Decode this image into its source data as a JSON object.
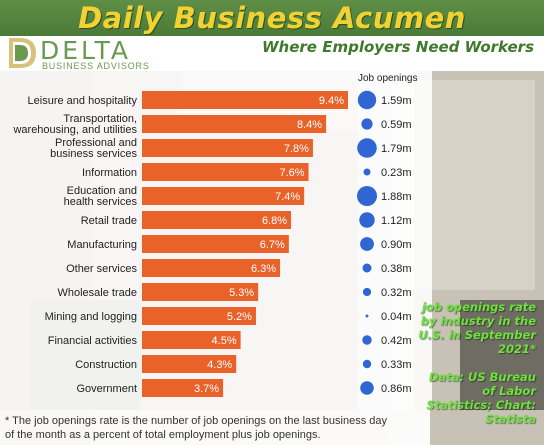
{
  "header": {
    "title": "Daily Business Acumen",
    "subtitle": "Where Employers Need Workers",
    "logo_name": "DELTA",
    "logo_tag": "BUSINESS ADVISORS"
  },
  "side_note": {
    "line1": "job openings rate",
    "line2": "by industry in the",
    "line3": "U.S. in September",
    "line4": "2021*",
    "source1": "Data: US Bureau",
    "source2": "of Labor",
    "source3": "Statistics; Chart:",
    "source4": "Statista"
  },
  "footnote": {
    "line1": "* The job openings rate is the number of job openings on the last business day",
    "line2": "of the month as a percent of total employment plus job openings."
  },
  "colors": {
    "header_green": "#4f7f3b",
    "title_yellow": "#f1d233",
    "bar_orange": "#e8622a",
    "bubble_blue": "#2f66d3",
    "note_green": "#6ce33a"
  },
  "chart_data": {
    "type": "bar",
    "orientation": "horizontal",
    "categories": [
      "Leisure and hospitality",
      "Transportation,\nwarehousing, and utilities",
      "Professional and\nbusiness services",
      "Information",
      "Education and\nhealth services",
      "Retail trade",
      "Manufacturing",
      "Other services",
      "Wholesale trade",
      "Mining and logging",
      "Financial activities",
      "Construction",
      "Government"
    ],
    "series": [
      {
        "values": [
          9.4,
          8.4,
          7.8,
          7.6,
          7.4,
          6.8,
          6.7,
          6.3,
          5.3,
          5.2,
          4.5,
          4.3,
          3.7
        ],
        "labels": [
          "9.4%",
          "8.4%",
          "7.8%",
          "7.6%",
          "7.4%",
          "6.8%",
          "6.7%",
          "6.3%",
          "5.3%",
          "5.2%",
          "4.5%",
          "4.3%",
          "3.7%"
        ]
      },
      {
        "name": "Job openings",
        "values": [
          1.59,
          0.59,
          1.79,
          0.23,
          1.88,
          1.12,
          0.9,
          0.38,
          0.32,
          0.04,
          0.42,
          0.33,
          0.86
        ],
        "labels": [
          "1.59m",
          "0.59m",
          "1.79m",
          "0.23m",
          "1.88m",
          "1.12m",
          "0.90m",
          "0.38m",
          "0.32m",
          "0.04m",
          "0.42m",
          "0.33m",
          "0.86m"
        ],
        "display": "bubble"
      }
    ],
    "xlim": [
      0,
      9.4
    ],
    "grid": false,
    "legend": "none"
  }
}
